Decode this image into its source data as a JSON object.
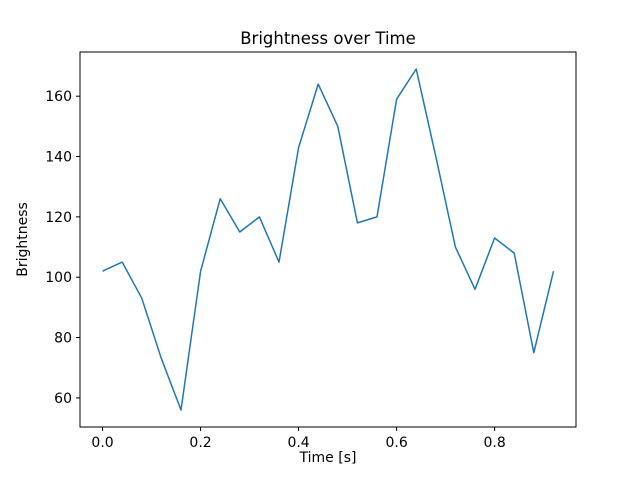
{
  "chart_data": {
    "type": "line",
    "title": "Brightness over Time",
    "xlabel": "Time [s]",
    "ylabel": "Brightness",
    "x": [
      0.0,
      0.04,
      0.08,
      0.12,
      0.16,
      0.2,
      0.24,
      0.28,
      0.32,
      0.36,
      0.4,
      0.44,
      0.48,
      0.52,
      0.56,
      0.6,
      0.64,
      0.68,
      0.72,
      0.76,
      0.8,
      0.84,
      0.88,
      0.92
    ],
    "y": [
      102,
      105,
      93,
      73,
      56,
      102,
      126,
      115,
      120,
      105,
      143,
      164,
      150,
      118,
      120,
      159,
      169,
      140,
      110,
      96,
      113,
      108,
      75,
      102
    ],
    "xlim": [
      -0.046,
      0.966
    ],
    "ylim": [
      50.35,
      174.65
    ],
    "xticks": [
      0.0,
      0.2,
      0.4,
      0.6,
      0.8
    ],
    "xtick_labels": [
      "0.0",
      "0.2",
      "0.4",
      "0.6",
      "0.8"
    ],
    "yticks": [
      60,
      80,
      100,
      120,
      140,
      160
    ],
    "ytick_labels": [
      "60",
      "80",
      "100",
      "120",
      "140",
      "160"
    ],
    "line_color": "#1f77b4",
    "grid": false,
    "legend": "none"
  }
}
